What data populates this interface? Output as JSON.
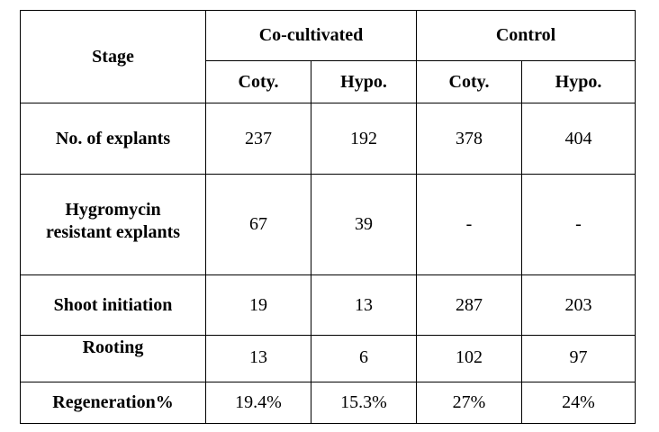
{
  "table": {
    "header": {
      "stage": "Stage",
      "co_cultivated": "Co-cultivated",
      "control": "Control",
      "sub_headers": [
        "Coty.",
        "Hypo.",
        "Coty.",
        "Hypo."
      ]
    },
    "rows": [
      {
        "label_lines": [
          "No. of explants"
        ],
        "values": [
          "237",
          "192",
          "378",
          "404"
        ]
      },
      {
        "label_lines": [
          "Hygromycin",
          "resistant explants"
        ],
        "values": [
          "67",
          "39",
          "-",
          "-"
        ]
      },
      {
        "label_lines": [
          "Shoot initiation"
        ],
        "values": [
          "19",
          "13",
          "287",
          "203"
        ]
      },
      {
        "label_lines": [
          "Rooting"
        ],
        "values": [
          "13",
          "6",
          "102",
          "97"
        ]
      },
      {
        "label_lines": [
          "Regeneration%"
        ],
        "values": [
          "19.4%",
          "15.3%",
          "27%",
          "24%"
        ]
      }
    ]
  }
}
